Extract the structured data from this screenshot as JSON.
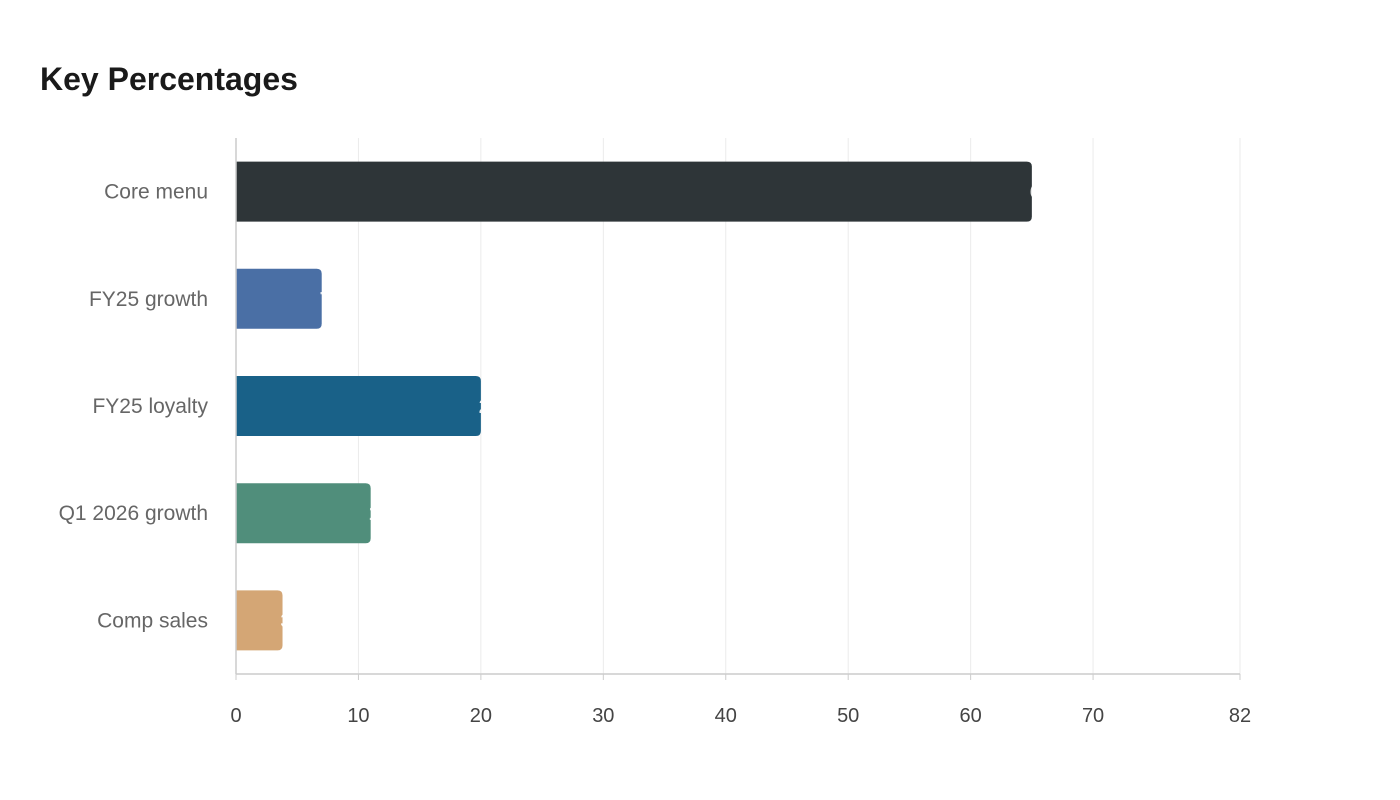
{
  "title": "Key Percentages",
  "chart_data": {
    "type": "bar",
    "orientation": "horizontal",
    "title": "Key Percentages",
    "categories": [
      "Core menu",
      "FY25 growth",
      "FY25 loyalty",
      "Q1 2026 growth",
      "Comp sales"
    ],
    "values": [
      65,
      7,
      20,
      11,
      3.8
    ],
    "value_labels": [
      "65",
      "7",
      "20",
      "11",
      "3.8"
    ],
    "colors": [
      "#2e3538",
      "#4a6fa5",
      "#196188",
      "#508e7b",
      "#d4a675"
    ],
    "xlim": [
      0,
      82
    ],
    "xticks": [
      0,
      10,
      20,
      30,
      40,
      50,
      60,
      70,
      82
    ],
    "grid": "vertical"
  }
}
